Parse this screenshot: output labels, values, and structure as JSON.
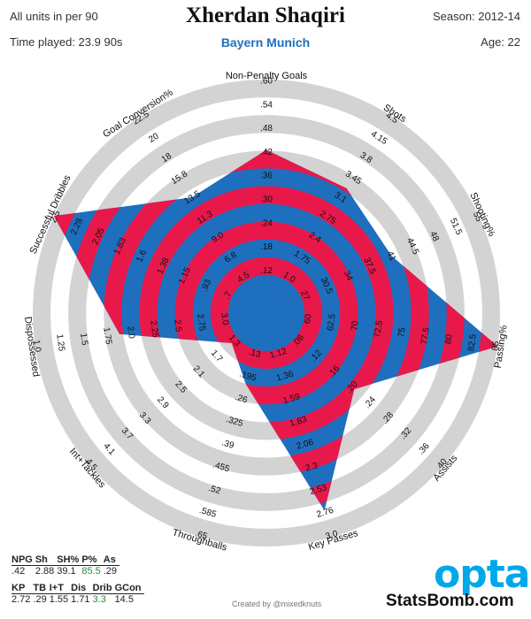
{
  "header": {
    "units_note": "All units in per 90",
    "time_played": "Time played: 23.9 90s",
    "player_name": "Xherdan Shaqiri",
    "team": "Bayern Munich",
    "season": "Season: 2012-14",
    "age": "Age: 22"
  },
  "colors": {
    "ring_gray": "#d3d3d3",
    "player_red": "#e8184a",
    "player_blue": "#1f6fbf",
    "highlight_green": "#2e8b3e",
    "opta_blue": "#00a8e8"
  },
  "chart_data": {
    "type": "radar",
    "rings": 6,
    "axes": [
      {
        "name": "Non-Penalty Goals",
        "ticks": [
          ".12",
          ".18",
          ".24",
          ".30",
          ".36",
          ".42",
          ".48",
          ".54",
          ".60"
        ],
        "value_fraction": 0.67
      },
      {
        "name": "Shots",
        "ticks": [
          "1.0",
          "1.75",
          "2.4",
          "2.75",
          "3.1",
          "3.45",
          "3.8",
          "4.15",
          "4.5"
        ],
        "value_fraction": 0.6
      },
      {
        "name": "Shooting%",
        "ticks": [
          "27",
          "30.5",
          "34",
          "37.5",
          "41",
          "44.5",
          "48",
          "51.5",
          "55"
        ],
        "value_fraction": 0.55
      },
      {
        "name": "Passing%",
        "ticks": [
          "60",
          "62.5",
          "70",
          "72.5",
          "75",
          "77.5",
          "80",
          "82.5",
          "85"
        ],
        "value_fraction": 1.0
      },
      {
        "name": "Assists",
        "ticks": [
          ".08",
          ".12",
          ".16",
          ".20",
          ".24",
          ".28",
          ".32",
          ".36",
          ".40"
        ],
        "value_fraction": 0.45
      },
      {
        "name": "Key Passes",
        "ticks": [
          "1.12",
          "1.36",
          "1.59",
          "1.83",
          "2.06",
          "2.3",
          "2.53",
          "2.76",
          "3.0"
        ],
        "value_fraction": 0.87
      },
      {
        "name": "Throughballs",
        "ticks": [
          ".13",
          ".195",
          ".26",
          ".325",
          ".39",
          ".455",
          ".52",
          ".585",
          ".65"
        ],
        "value_fraction": 0.25
      },
      {
        "name": "Int+Tackles",
        "ticks": [
          "1.3",
          "1.7",
          "2.1",
          "2.5",
          "2.9",
          "3.3",
          "3.7",
          "4.1",
          "4.5"
        ],
        "value_fraction": 0.12
      },
      {
        "name": "Dispossessed",
        "ticks": [
          "3.0",
          "2.75",
          "2.5",
          "2.25",
          "2.0",
          "1.75",
          "1.5",
          "1.25",
          "1.0"
        ],
        "value_fraction": 0.6
      },
      {
        "name": "Successful Dribbles",
        "ticks": [
          ".7",
          ".93",
          "1.15",
          "1.38",
          "1.6",
          "1.83",
          "2.05",
          "2.28",
          "2.5"
        ],
        "value_fraction": 1.0
      },
      {
        "name": "Goal Conversion%",
        "ticks": [
          "4.5",
          "6.8",
          "9.0",
          "11.3",
          "13.5",
          "15.8",
          "18",
          "20",
          "22.5"
        ],
        "value_fraction": 0.55
      }
    ],
    "stats_table": {
      "headers": [
        "NPG",
        "Sh",
        "SH%",
        "P%",
        "As"
      ],
      "values": [
        ".42",
        "2.88",
        "39.1",
        "85.5",
        ".29"
      ],
      "highlight": [
        false,
        false,
        false,
        true,
        false
      ]
    },
    "stats_table_2": {
      "headers": [
        "KP",
        "TB",
        "I+T",
        "Dis",
        "Drib",
        "GCon"
      ],
      "values": [
        "2.72",
        ".29",
        "1.55",
        "1.71",
        "3.3",
        "14.5"
      ],
      "highlight": [
        false,
        false,
        false,
        false,
        true,
        false
      ]
    }
  },
  "footer": {
    "credit": "Created by @mixedknuts",
    "opta_logo": "opta",
    "brand": "StatsBomb.com"
  }
}
